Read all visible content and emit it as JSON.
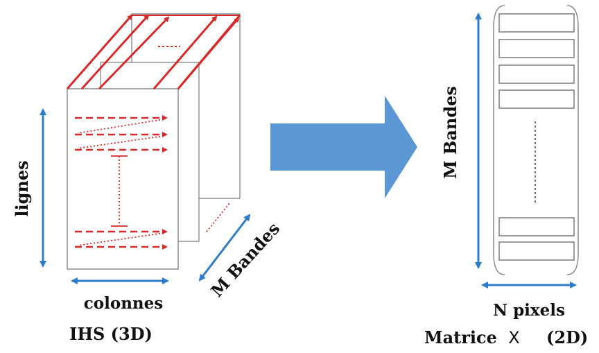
{
  "left": {
    "label_rows": "lignes",
    "label_columns": "colonnes",
    "label_bands": "M Bandes",
    "caption": "IHS (3D)"
  },
  "right": {
    "label_bands": "M Bandes",
    "label_pixels": "N pixels",
    "caption_main": "Matrice",
    "caption_var": "X",
    "caption_dim": "(2D)"
  },
  "colors": {
    "scan": "#d42a2a",
    "axis": "#2e7cc8",
    "big_arrow": "#5a97d4",
    "outline": "#7a7a7a"
  }
}
